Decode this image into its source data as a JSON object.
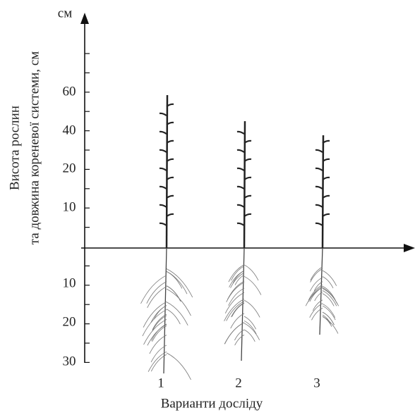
{
  "axis": {
    "unit": "см",
    "y_label_lines": [
      "Висота рослин",
      "та довжина кореневої системи, см"
    ],
    "x_label": "Варианти досліду",
    "above_ticks": [
      "60",
      "40",
      "20",
      "10"
    ],
    "below_ticks": [
      "10",
      "20",
      "30"
    ]
  },
  "variants": [
    "1",
    "2",
    "3"
  ]
}
